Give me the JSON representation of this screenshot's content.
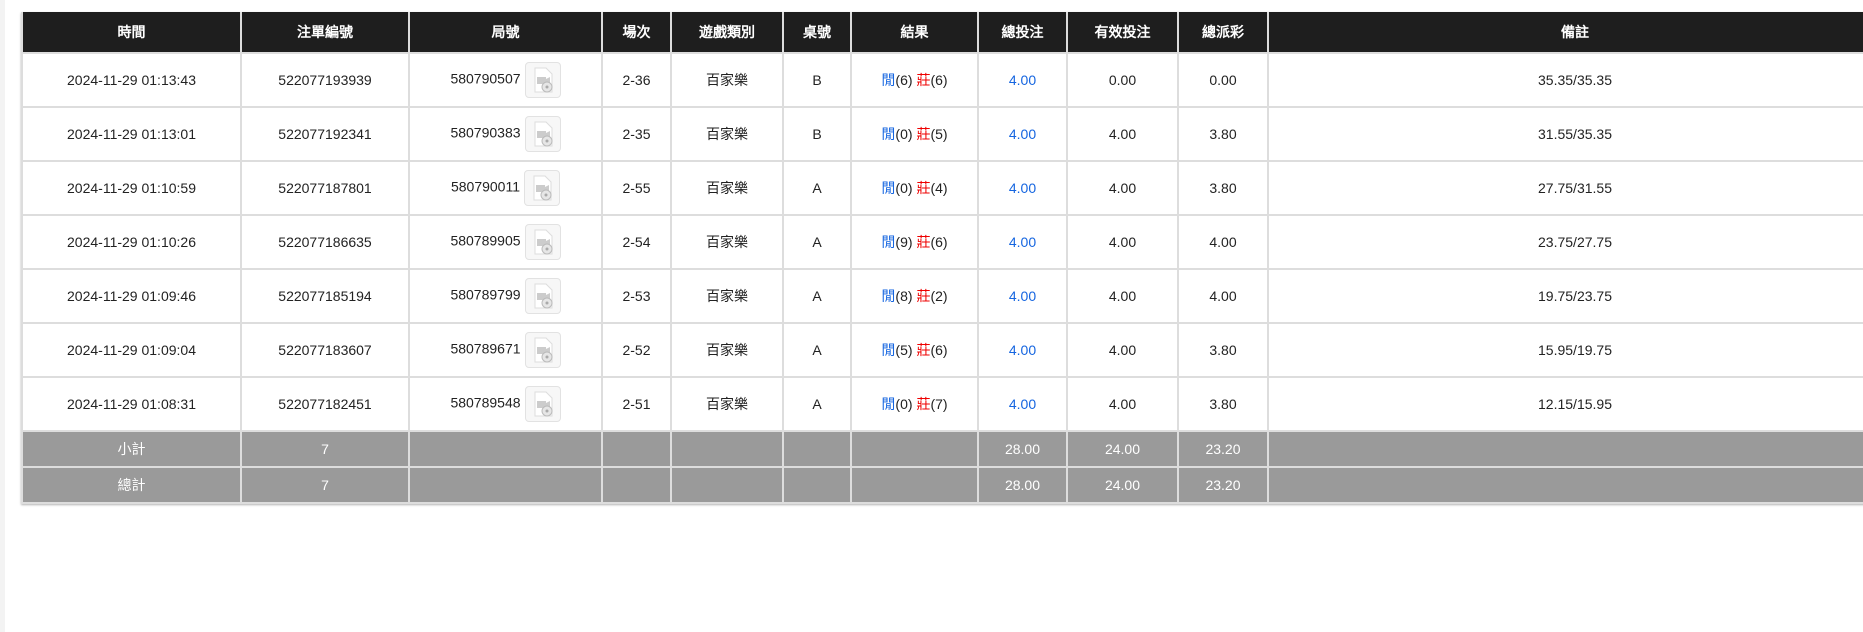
{
  "headers": [
    "時間",
    "注單編號",
    "局號",
    "場次",
    "遊戲類別",
    "桌號",
    "結果",
    "總投注",
    "有效投注",
    "總派彩",
    "備註"
  ],
  "rows": [
    {
      "time": "2024-11-29 01:13:43",
      "bet_id": "522077193939",
      "round": "580790507",
      "shoe": "2-36",
      "game": "百家樂",
      "table": "B",
      "player_label": "閒",
      "player": "(6)",
      "banker_label": "莊",
      "banker": "(6)",
      "total_bet": "4.00",
      "valid_bet": "0.00",
      "payout": "0.00",
      "note": "35.35/35.35"
    },
    {
      "time": "2024-11-29 01:13:01",
      "bet_id": "522077192341",
      "round": "580790383",
      "shoe": "2-35",
      "game": "百家樂",
      "table": "B",
      "player_label": "閒",
      "player": "(0)",
      "banker_label": "莊",
      "banker": "(5)",
      "total_bet": "4.00",
      "valid_bet": "4.00",
      "payout": "3.80",
      "note": "31.55/35.35"
    },
    {
      "time": "2024-11-29 01:10:59",
      "bet_id": "522077187801",
      "round": "580790011",
      "shoe": "2-55",
      "game": "百家樂",
      "table": "A",
      "player_label": "閒",
      "player": "(0)",
      "banker_label": "莊",
      "banker": "(4)",
      "total_bet": "4.00",
      "valid_bet": "4.00",
      "payout": "3.80",
      "note": "27.75/31.55"
    },
    {
      "time": "2024-11-29 01:10:26",
      "bet_id": "522077186635",
      "round": "580789905",
      "shoe": "2-54",
      "game": "百家樂",
      "table": "A",
      "player_label": "閒",
      "player": "(9)",
      "banker_label": "莊",
      "banker": "(6)",
      "total_bet": "4.00",
      "valid_bet": "4.00",
      "payout": "4.00",
      "note": "23.75/27.75"
    },
    {
      "time": "2024-11-29 01:09:46",
      "bet_id": "522077185194",
      "round": "580789799",
      "shoe": "2-53",
      "game": "百家樂",
      "table": "A",
      "player_label": "閒",
      "player": "(8)",
      "banker_label": "莊",
      "banker": "(2)",
      "total_bet": "4.00",
      "valid_bet": "4.00",
      "payout": "4.00",
      "note": "19.75/23.75"
    },
    {
      "time": "2024-11-29 01:09:04",
      "bet_id": "522077183607",
      "round": "580789671",
      "shoe": "2-52",
      "game": "百家樂",
      "table": "A",
      "player_label": "閒",
      "player": "(5)",
      "banker_label": "莊",
      "banker": "(6)",
      "total_bet": "4.00",
      "valid_bet": "4.00",
      "payout": "3.80",
      "note": "15.95/19.75"
    },
    {
      "time": "2024-11-29 01:08:31",
      "bet_id": "522077182451",
      "round": "580789548",
      "shoe": "2-51",
      "game": "百家樂",
      "table": "A",
      "player_label": "閒",
      "player": "(0)",
      "banker_label": "莊",
      "banker": "(7)",
      "total_bet": "4.00",
      "valid_bet": "4.00",
      "payout": "3.80",
      "note": "12.15/15.95"
    }
  ],
  "subtotal": {
    "label": "小計",
    "count": "7",
    "total_bet": "28.00",
    "valid_bet": "24.00",
    "payout": "23.20"
  },
  "grand_total": {
    "label": "總計",
    "count": "7",
    "total_bet": "28.00",
    "valid_bet": "24.00",
    "payout": "23.20"
  },
  "colors": {
    "header_bg": "#1e1e1e",
    "summary_bg": "#9a9a9a",
    "link_blue": "#1565e0",
    "banker_red": "#ee0000"
  },
  "icons": {
    "replay": "video-file-icon"
  }
}
